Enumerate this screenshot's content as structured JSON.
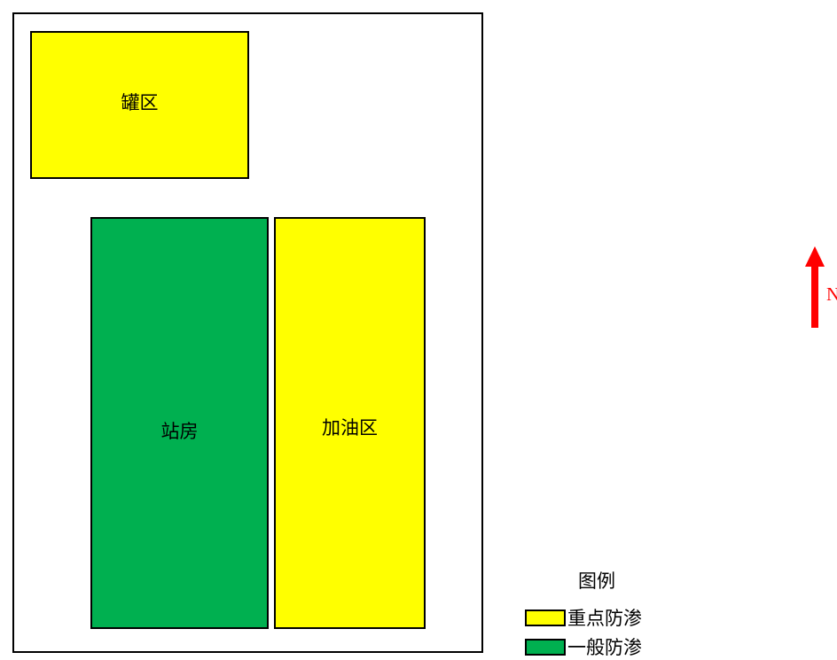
{
  "colors": {
    "key_seepage": "#ffff00",
    "general_seepage": "#00b050",
    "north_arrow": "#ff0000",
    "outline": "#000000"
  },
  "zones": {
    "tank": {
      "label": "罐区",
      "color": "#ffff00"
    },
    "station": {
      "label": "站房",
      "color": "#00b050"
    },
    "fueling": {
      "label": "加油区",
      "color": "#ffff00"
    }
  },
  "north_arrow": {
    "label": "N",
    "icon": "north-arrow-icon",
    "color": "#ff0000"
  },
  "legend": {
    "title": "图例",
    "items": [
      {
        "label": "重点防渗",
        "color": "#ffff00"
      },
      {
        "label": "一般防渗",
        "color": "#00b050"
      }
    ]
  }
}
